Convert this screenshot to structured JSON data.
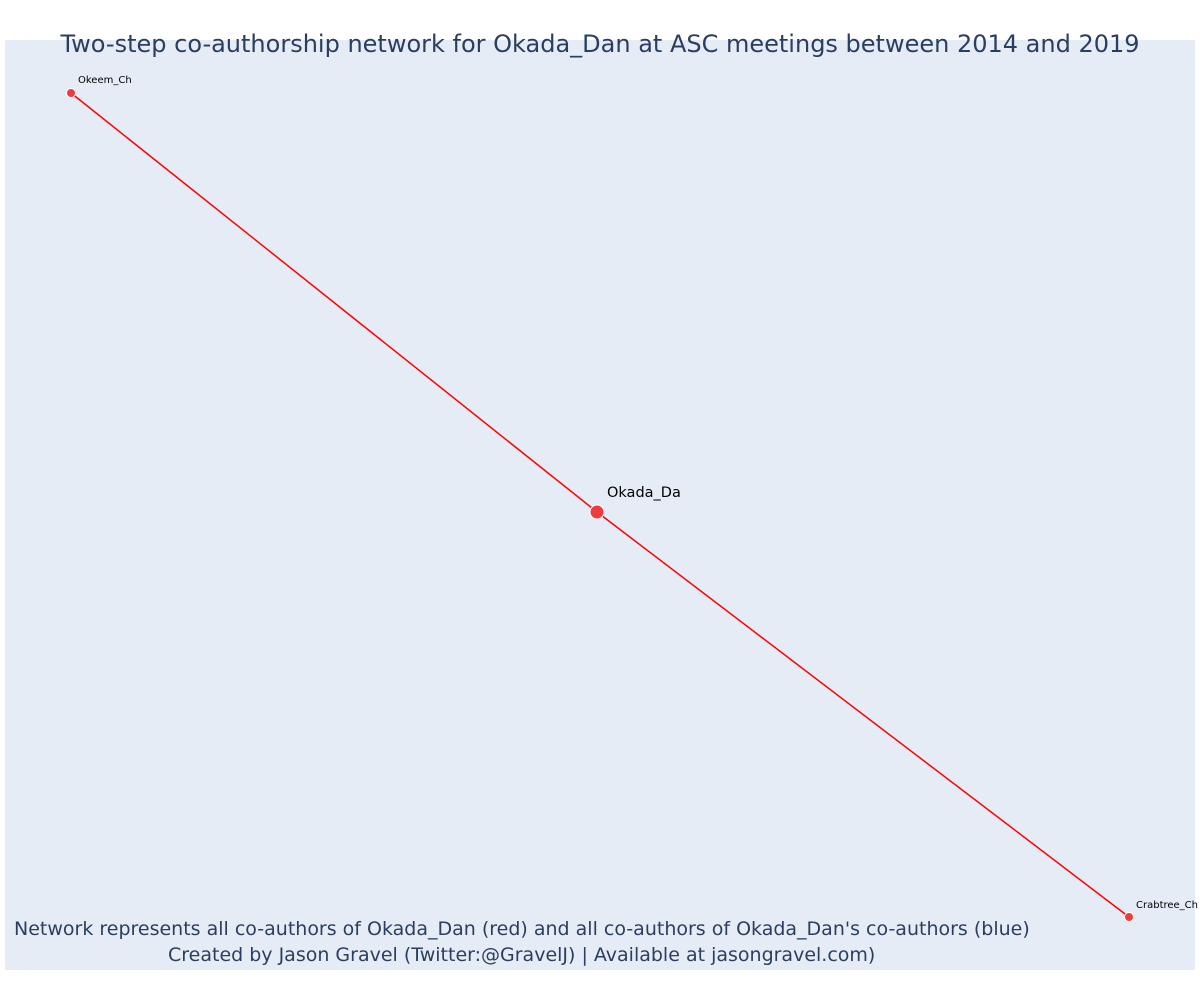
{
  "title": "Two-step co-authorship network for Okada_Dan at ASC meetings between 2014 and 2019",
  "caption": {
    "line1": "Network represents all co-authors of Okada_Dan (red) and all co-authors of Okada_Dan's co-authors (blue)",
    "line2": "Created by Jason Gravel (Twitter:@GravelJ) | Available at jasongravel.com)"
  },
  "colors": {
    "background": "#e5ecf6",
    "edge": "#ff0000",
    "node": "#ef3b3b",
    "label": "#000000",
    "title": "#2a3f5f"
  },
  "chart_data": {
    "type": "network",
    "nodes": [
      {
        "id": "Okeem_Ch",
        "label": "Okeem_Ch",
        "group": "co-author",
        "focal": false
      },
      {
        "id": "Okada_Da",
        "label": "Okada_Da",
        "group": "focal",
        "focal": true
      },
      {
        "id": "Crabtree_Ch",
        "label": "Crabtree_Ch",
        "group": "co-author",
        "focal": false
      }
    ],
    "edges": [
      {
        "source": "Okeem_Ch",
        "target": "Okada_Da"
      },
      {
        "source": "Okada_Da",
        "target": "Crabtree_Ch"
      }
    ]
  }
}
